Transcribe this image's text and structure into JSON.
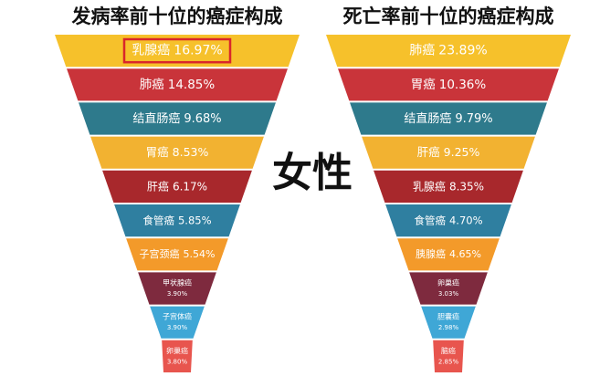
{
  "center_label": "女性",
  "chart_data": [
    {
      "type": "funnel",
      "title": "发病率前十位的癌症构成",
      "categories": [
        "乳腺癌",
        "肺癌",
        "结直肠癌",
        "胃癌",
        "肝癌",
        "食管癌",
        "子宫颈癌",
        "甲状腺癌",
        "子宫体癌",
        "卵巢癌"
      ],
      "values": [
        16.97,
        14.85,
        9.68,
        8.53,
        6.17,
        5.85,
        5.54,
        3.9,
        3.9,
        3.8
      ],
      "value_labels": [
        "16.97%",
        "14.85%",
        "9.68%",
        "8.53%",
        "6.17%",
        "5.85%",
        "5.54%",
        "3.90%",
        "3.90%",
        "3.80%"
      ],
      "colors": [
        "#f6c12b",
        "#c9343a",
        "#2e7a8c",
        "#f2b231",
        "#a8282c",
        "#2f7fa0",
        "#f39a2a",
        "#7e2a3e",
        "#3fa7d6",
        "#e8554e"
      ]
    },
    {
      "type": "funnel",
      "title": "死亡率前十位的癌症构成",
      "categories": [
        "肺癌",
        "胃癌",
        "结直肠癌",
        "肝癌",
        "乳腺癌",
        "食管癌",
        "胰腺癌",
        "卵巢癌",
        "胆囊癌",
        "脑癌"
      ],
      "values": [
        23.89,
        10.36,
        9.79,
        9.25,
        8.35,
        4.7,
        4.65,
        3.03,
        2.98,
        2.85
      ],
      "value_labels": [
        "23.89%",
        "10.36%",
        "9.79%",
        "9.25%",
        "8.35%",
        "4.70%",
        "4.65%",
        "3.03%",
        "2.98%",
        "2.85%"
      ],
      "colors": [
        "#f6c12b",
        "#c9343a",
        "#2e7a8c",
        "#f2b231",
        "#a8282c",
        "#2f7fa0",
        "#f39a2a",
        "#7e2a3e",
        "#3fa7d6",
        "#e8554e"
      ]
    }
  ]
}
